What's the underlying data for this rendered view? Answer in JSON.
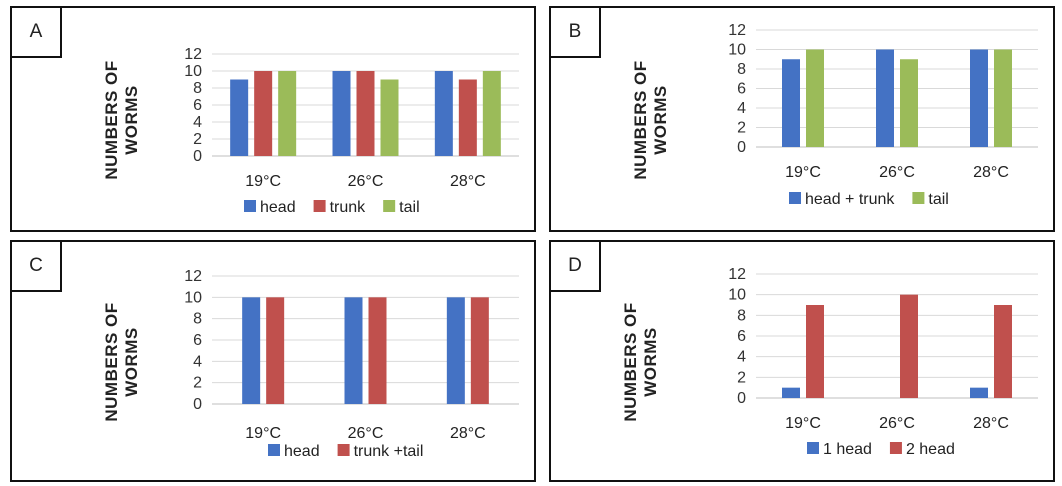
{
  "colors": {
    "blue": "#4472C4",
    "red": "#C0504D",
    "green": "#9BBB59"
  },
  "chart_data": [
    {
      "panel": "A",
      "type": "bar",
      "ylabel_lines": [
        "NUMBERS OF",
        "WORMS"
      ],
      "categories": [
        "19°C",
        "26°C",
        "28°C"
      ],
      "ylim": [
        0,
        12
      ],
      "yticks": [
        0,
        2,
        4,
        6,
        8,
        10,
        12
      ],
      "legend_position": "bottom",
      "series": [
        {
          "name": "head",
          "color": "#4472C4",
          "values": [
            9,
            10,
            10
          ]
        },
        {
          "name": "trunk",
          "color": "#C0504D",
          "values": [
            10,
            10,
            9
          ]
        },
        {
          "name": "tail",
          "color": "#9BBB59",
          "values": [
            10,
            9,
            10
          ]
        }
      ]
    },
    {
      "panel": "B",
      "type": "bar",
      "ylabel_lines": [
        "NUMBERS OF",
        "WORMS"
      ],
      "categories": [
        "19°C",
        "26°C",
        "28°C"
      ],
      "ylim": [
        0,
        12
      ],
      "yticks": [
        0,
        2,
        4,
        6,
        8,
        10,
        12
      ],
      "legend_position": "bottom",
      "series": [
        {
          "name": "head + trunk",
          "color": "#4472C4",
          "values": [
            9,
            10,
            10
          ]
        },
        {
          "name": "tail",
          "color": "#9BBB59",
          "values": [
            10,
            9,
            10
          ]
        }
      ]
    },
    {
      "panel": "C",
      "type": "bar",
      "ylabel_lines": [
        "NUMBERS OF",
        "WORMS"
      ],
      "categories": [
        "19°C",
        "26°C",
        "28°C"
      ],
      "ylim": [
        0,
        12
      ],
      "yticks": [
        0,
        2,
        4,
        6,
        8,
        10,
        12
      ],
      "legend_position": "bottom",
      "series": [
        {
          "name": "head",
          "color": "#4472C4",
          "values": [
            10,
            10,
            10
          ]
        },
        {
          "name": "trunk +tail",
          "color": "#C0504D",
          "values": [
            10,
            10,
            10
          ]
        }
      ]
    },
    {
      "panel": "D",
      "type": "bar",
      "ylabel_lines": [
        "NUMBERS OF",
        "WORMS"
      ],
      "categories": [
        "19°C",
        "26°C",
        "28°C"
      ],
      "ylim": [
        0,
        12
      ],
      "yticks": [
        0,
        2,
        4,
        6,
        8,
        10,
        12
      ],
      "legend_position": "bottom",
      "series": [
        {
          "name": "1 head",
          "color": "#4472C4",
          "values": [
            1,
            0,
            1
          ]
        },
        {
          "name": "2 head",
          "color": "#C0504D",
          "values": [
            9,
            10,
            9
          ]
        }
      ]
    }
  ]
}
